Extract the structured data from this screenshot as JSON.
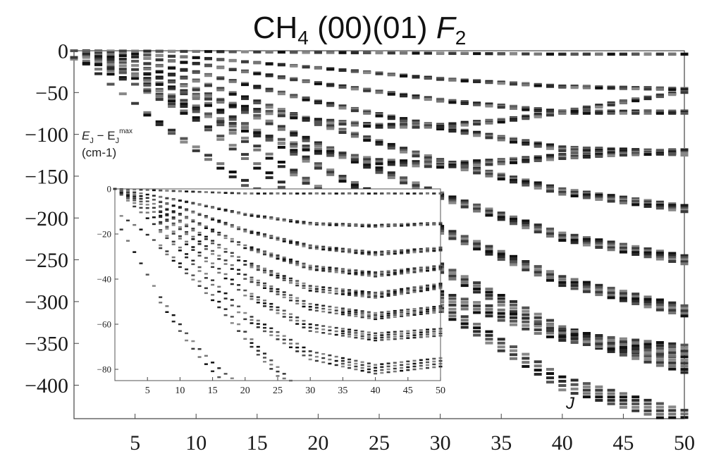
{
  "chart_data": [
    {
      "type": "scatter",
      "panel": "main",
      "title_main": "CH",
      "title_sub": "4",
      "title_rest": " (00)(01) ",
      "title_italic": "F",
      "title_italic_sub": "2",
      "ylabel_line1": "E",
      "ylabel_sub1": "J",
      "ylabel_dash": " − E",
      "ylabel_sub2": "J",
      "ylabel_sup2": "max",
      "ylabel_line2": "(cm-1)",
      "xlabel": "J",
      "xlim": [
        0,
        50
      ],
      "ylim": [
        -440,
        0
      ],
      "xticks": [
        5,
        10,
        15,
        20,
        25,
        30,
        35,
        40,
        45,
        50
      ],
      "yticks": [
        0,
        -50,
        -100,
        -150,
        -200,
        -250,
        -300,
        -350,
        -400
      ],
      "marker": "short horizontal dash per level",
      "band_series": [
        {
          "x": [
            0,
            10,
            20,
            30,
            40,
            50
          ],
          "y": [
            0,
            -0.8,
            -2,
            -3,
            -4,
            -4
          ]
        },
        {
          "x": [
            0,
            10,
            20,
            30,
            40,
            50
          ],
          "y": [
            0,
            -8,
            -20,
            -33,
            -42,
            -45
          ]
        },
        {
          "x": [
            0,
            10,
            20,
            30,
            40,
            50
          ],
          "y": [
            0,
            -15,
            -38,
            -58,
            -72,
            -72
          ]
        },
        {
          "x": [
            0,
            10,
            20,
            30,
            40,
            50
          ],
          "y": [
            0,
            -25,
            -60,
            -90,
            -115,
            -120
          ]
        },
        {
          "x": [
            0,
            10,
            20,
            30,
            40,
            50
          ],
          "y": [
            0,
            -35,
            -85,
            -130,
            -165,
            -185
          ]
        },
        {
          "x": [
            0,
            10,
            20,
            30,
            40,
            50
          ],
          "y": [
            0,
            -45,
            -110,
            -170,
            -218,
            -245
          ]
        },
        {
          "x": [
            0,
            10,
            20,
            30,
            40,
            50
          ],
          "y": [
            0,
            -55,
            -135,
            -210,
            -270,
            -305
          ]
        },
        {
          "x": [
            0,
            10,
            20,
            30,
            40,
            50
          ],
          "y": [
            0,
            -66,
            -162,
            -255,
            -330,
            -370
          ]
        },
        {
          "x": [
            0,
            10,
            20,
            30,
            40,
            50
          ],
          "y": [
            0,
            -80,
            -190,
            -300,
            -390,
            -430
          ]
        },
        {
          "x": [
            0,
            5,
            10,
            15,
            20,
            25,
            30,
            35,
            40,
            45,
            50
          ],
          "y": [
            -10,
            -40,
            -70,
            -98,
            -118,
            -130,
            -134,
            -130,
            -124,
            -120,
            -118
          ]
        },
        {
          "x": [
            0,
            5,
            10,
            15,
            20,
            25,
            30,
            35,
            40,
            45,
            50
          ],
          "y": [
            -8,
            -30,
            -52,
            -70,
            -82,
            -88,
            -88,
            -82,
            -72,
            -60,
            -48
          ]
        },
        {
          "x": [
            1,
            3,
            5,
            7,
            9,
            11,
            13,
            15
          ],
          "y": [
            -15,
            -40,
            -63,
            -85,
            -105,
            -125,
            -145,
            -165
          ]
        },
        {
          "x": [
            30,
            32,
            34,
            36,
            38,
            40,
            42,
            44,
            46,
            48,
            50
          ],
          "y": [
            -288,
            -297,
            -305,
            -315,
            -325,
            -333,
            -338,
            -343,
            -346,
            -349,
            -352
          ]
        }
      ]
    },
    {
      "type": "scatter",
      "panel": "inset",
      "xlim": [
        0,
        50
      ],
      "ylim": [
        -85,
        0
      ],
      "xticks": [
        5,
        10,
        15,
        20,
        25,
        30,
        35,
        40,
        45,
        50
      ],
      "yticks": [
        0,
        -20,
        -40,
        -60,
        -80
      ],
      "band_series": [
        {
          "x": [
            0,
            10,
            20,
            30,
            40,
            50
          ],
          "y": [
            0,
            -1,
            -2,
            -2,
            -2,
            -2
          ]
        },
        {
          "x": [
            0,
            10,
            20,
            30,
            40,
            50
          ],
          "y": [
            0,
            -5,
            -11,
            -15,
            -16,
            -15
          ]
        },
        {
          "x": [
            0,
            10,
            20,
            30,
            40,
            50
          ],
          "y": [
            0,
            -8,
            -18,
            -25,
            -28,
            -26
          ]
        },
        {
          "x": [
            0,
            10,
            20,
            30,
            40,
            50
          ],
          "y": [
            0,
            -11,
            -25,
            -34,
            -37,
            -34
          ]
        },
        {
          "x": [
            0,
            10,
            20,
            30,
            40,
            50
          ],
          "y": [
            0,
            -14,
            -32,
            -43,
            -46,
            -42
          ]
        },
        {
          "x": [
            0,
            10,
            20,
            30,
            40,
            50
          ],
          "y": [
            0,
            -17,
            -38,
            -51,
            -55,
            -52
          ]
        },
        {
          "x": [
            0,
            10,
            20,
            30,
            40,
            50
          ],
          "y": [
            0,
            -21,
            -45,
            -60,
            -64,
            -62
          ]
        },
        {
          "x": [
            0,
            10,
            20,
            30,
            40,
            50
          ],
          "y": [
            0,
            -26,
            -55,
            -72,
            -78,
            -75
          ]
        },
        {
          "x": [
            1,
            4,
            7,
            10,
            13,
            16,
            19,
            22,
            25,
            27
          ],
          "y": [
            -12,
            -18,
            -25,
            -33,
            -41,
            -50,
            -60,
            -70,
            -79,
            -85
          ]
        },
        {
          "x": [
            1,
            3,
            5,
            7,
            9,
            11,
            13,
            15,
            17,
            19
          ],
          "y": [
            -18,
            -28,
            -38,
            -48,
            -56,
            -64,
            -71,
            -77,
            -82,
            -86
          ]
        }
      ]
    }
  ]
}
